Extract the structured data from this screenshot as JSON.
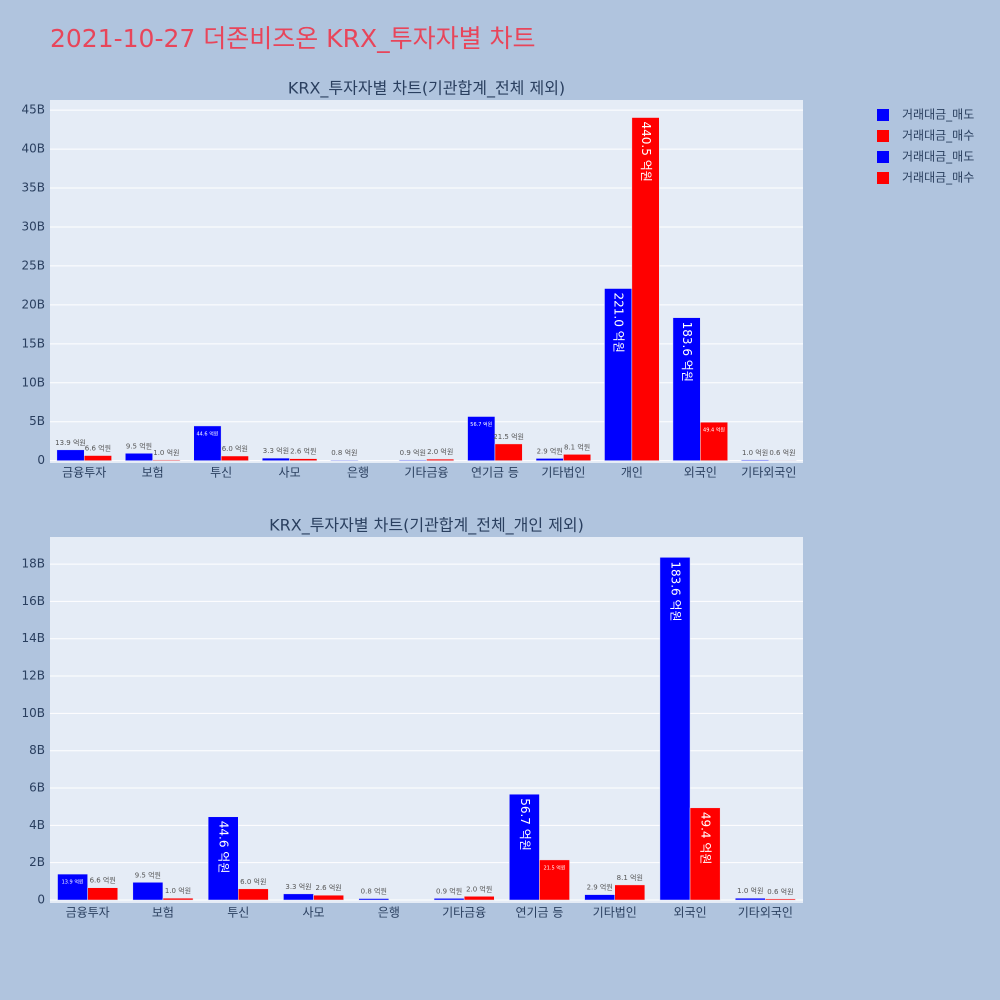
{
  "title": "2021-10-27 더존비즈온 KRX_투자자별 차트",
  "chart_data": [
    {
      "type": "bar",
      "title": "KRX_투자자별 차트(기관합계_전체 제외)",
      "categories": [
        "금융투자",
        "보험",
        "투신",
        "사모",
        "은행",
        "기타금융",
        "연기금 등",
        "기타법인",
        "개인",
        "외국인",
        "기타외국인"
      ],
      "series": [
        {
          "name": "거래대금_매도",
          "color": "#0000ff",
          "values": [
            1390000000,
            950000000,
            4460000000,
            330000000,
            80000000,
            90000000,
            5670000000,
            290000000,
            22100000000,
            18360000000,
            100000000
          ],
          "value_labels": [
            "13.9 억원",
            "9.5 억원",
            "44.6 억원",
            "3.3 억원",
            "0.8 억원",
            "0.9 억원",
            "56.7 억원",
            "2.9 억원",
            "221.0 억원",
            "183.6 억원",
            "1.0 억원"
          ]
        },
        {
          "name": "거래대금_매수",
          "color": "#ff0000",
          "values": [
            660000000,
            100000000,
            600000000,
            260000000,
            0,
            200000000,
            2150000000,
            810000000,
            44050000000,
            4940000000,
            60000000
          ],
          "value_labels": [
            "6.6 억원",
            "1.0 억원",
            "6.0 억원",
            "2.6 억원",
            null,
            "2.0 억원",
            "21.5 억원",
            "8.1 억원",
            "440.5 억원",
            "49.4 억원",
            "0.6 억원"
          ]
        }
      ],
      "ylim": [
        -300000000,
        46300000000
      ],
      "yticks": [
        0,
        {
          "value": 5000000000,
          "label": "5B"
        },
        {
          "value": 10000000000,
          "label": "10B"
        },
        {
          "value": 15000000000,
          "label": "15B"
        },
        {
          "value": 20000000000,
          "label": "20B"
        },
        {
          "value": 25000000000,
          "label": "25B"
        },
        {
          "value": 30000000000,
          "label": "30B"
        },
        {
          "value": 35000000000,
          "label": "35B"
        },
        {
          "value": 40000000000,
          "label": "40B"
        },
        {
          "value": 45000000000,
          "label": "45B"
        }
      ],
      "grid": true
    },
    {
      "type": "bar",
      "title": "KRX_투자자별 차트(기관합계_전체_개인 제외)",
      "categories": [
        "금융투자",
        "보험",
        "투신",
        "사모",
        "은행",
        "기타금융",
        "연기금 등",
        "기타법인",
        "외국인",
        "기타외국인"
      ],
      "series": [
        {
          "name": "거래대금_매도",
          "color": "#0000ff",
          "values": [
            1390000000,
            950000000,
            4460000000,
            330000000,
            80000000,
            90000000,
            5670000000,
            290000000,
            18360000000,
            100000000
          ],
          "value_labels": [
            "13.9 억원",
            "9.5 억원",
            "44.6 억원",
            "3.3 억원",
            "0.8 억원",
            "0.9 억원",
            "56.7 억원",
            "2.9 억원",
            "183.6 억원",
            "1.0 억원"
          ]
        },
        {
          "name": "거래대금_매수",
          "color": "#ff0000",
          "values": [
            660000000,
            100000000,
            600000000,
            260000000,
            0,
            200000000,
            2150000000,
            810000000,
            4940000000,
            60000000
          ],
          "value_labels": [
            "6.6 억원",
            "1.0 억원",
            "6.0 억원",
            "2.6 억원",
            null,
            "2.0 억원",
            "21.5 억원",
            "8.1 억원",
            "49.4 억원",
            "0.6 억원"
          ]
        }
      ],
      "ylim": [
        -160000000,
        19450000000
      ],
      "yticks": [
        0,
        {
          "value": 2000000000,
          "label": "2B"
        },
        {
          "value": 4000000000,
          "label": "4B"
        },
        {
          "value": 6000000000,
          "label": "6B"
        },
        {
          "value": 8000000000,
          "label": "8B"
        },
        {
          "value": 10000000000,
          "label": "10B"
        },
        {
          "value": 12000000000,
          "label": "12B"
        },
        {
          "value": 14000000000,
          "label": "14B"
        },
        {
          "value": 16000000000,
          "label": "16B"
        },
        {
          "value": 18000000000,
          "label": "18B"
        }
      ],
      "grid": true
    }
  ]
}
